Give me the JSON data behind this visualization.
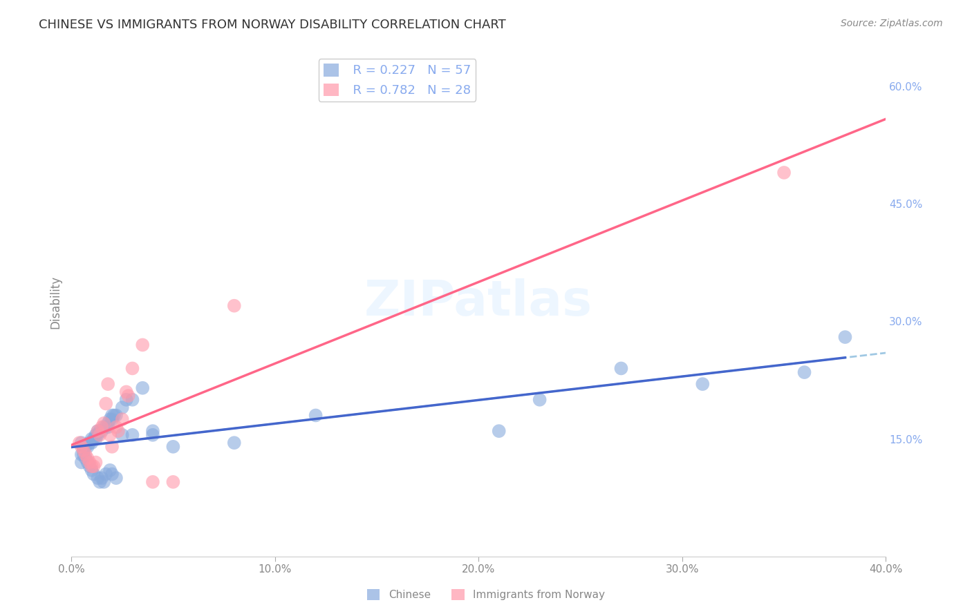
{
  "title": "CHINESE VS IMMIGRANTS FROM NORWAY DISABILITY CORRELATION CHART",
  "source": "Source: ZipAtlas.com",
  "xlabel": "",
  "ylabel": "Disability",
  "watermark": "ZIPatlas",
  "xlim": [
    0.0,
    0.4
  ],
  "ylim": [
    0.0,
    0.65
  ],
  "xticks": [
    0.0,
    0.1,
    0.2,
    0.3,
    0.4
  ],
  "yticks": [
    0.15,
    0.3,
    0.45,
    0.6
  ],
  "ytick_labels": [
    "15.0%",
    "30.0%",
    "45.0%",
    "60.0%"
  ],
  "xtick_labels": [
    "0.0%",
    "10.0%",
    "20.0%",
    "30.0%",
    "40.0%"
  ],
  "legend_r1": "R = 0.227",
  "legend_n1": "N = 57",
  "legend_r2": "R = 0.782",
  "legend_n2": "N = 28",
  "color_chinese": "#88AADD",
  "color_norway": "#FF99AA",
  "color_trend_chinese_solid": "#4466CC",
  "color_trend_chinese_dashed": "#88BBDD",
  "color_trend_norway": "#FF6688",
  "chinese_x": [
    0.005,
    0.005,
    0.006,
    0.007,
    0.008,
    0.009,
    0.01,
    0.01,
    0.011,
    0.012,
    0.012,
    0.013,
    0.013,
    0.014,
    0.015,
    0.016,
    0.017,
    0.018,
    0.018,
    0.019,
    0.02,
    0.02,
    0.021,
    0.022,
    0.025,
    0.027,
    0.03,
    0.035,
    0.04,
    0.005,
    0.006,
    0.006,
    0.007,
    0.008,
    0.009,
    0.01,
    0.011,
    0.013,
    0.014,
    0.015,
    0.016,
    0.017,
    0.019,
    0.02,
    0.022,
    0.025,
    0.03,
    0.04,
    0.05,
    0.08,
    0.12,
    0.21,
    0.23,
    0.27,
    0.31,
    0.36,
    0.38
  ],
  "chinese_y": [
    0.12,
    0.13,
    0.14,
    0.14,
    0.14,
    0.145,
    0.145,
    0.15,
    0.15,
    0.15,
    0.155,
    0.155,
    0.16,
    0.16,
    0.16,
    0.165,
    0.165,
    0.165,
    0.17,
    0.175,
    0.175,
    0.18,
    0.18,
    0.18,
    0.19,
    0.2,
    0.2,
    0.215,
    0.16,
    0.145,
    0.135,
    0.13,
    0.125,
    0.12,
    0.115,
    0.11,
    0.105,
    0.1,
    0.095,
    0.1,
    0.095,
    0.105,
    0.11,
    0.105,
    0.1,
    0.155,
    0.155,
    0.155,
    0.14,
    0.145,
    0.18,
    0.16,
    0.2,
    0.24,
    0.22,
    0.235,
    0.28
  ],
  "norway_x": [
    0.004,
    0.005,
    0.006,
    0.007,
    0.008,
    0.009,
    0.01,
    0.011,
    0.012,
    0.013,
    0.014,
    0.015,
    0.016,
    0.017,
    0.018,
    0.019,
    0.02,
    0.022,
    0.023,
    0.025,
    0.027,
    0.028,
    0.03,
    0.035,
    0.04,
    0.05,
    0.08,
    0.35
  ],
  "norway_y": [
    0.145,
    0.14,
    0.135,
    0.13,
    0.125,
    0.12,
    0.115,
    0.115,
    0.12,
    0.16,
    0.155,
    0.165,
    0.17,
    0.195,
    0.22,
    0.155,
    0.14,
    0.165,
    0.16,
    0.175,
    0.21,
    0.205,
    0.24,
    0.27,
    0.095,
    0.095,
    0.32,
    0.49
  ],
  "background_color": "#FFFFFF",
  "grid_color": "#DDDDDD",
  "title_color": "#333333",
  "axis_label_color": "#888888",
  "tick_color_right": "#88AAEE",
  "tick_color_bottom": "#888888"
}
